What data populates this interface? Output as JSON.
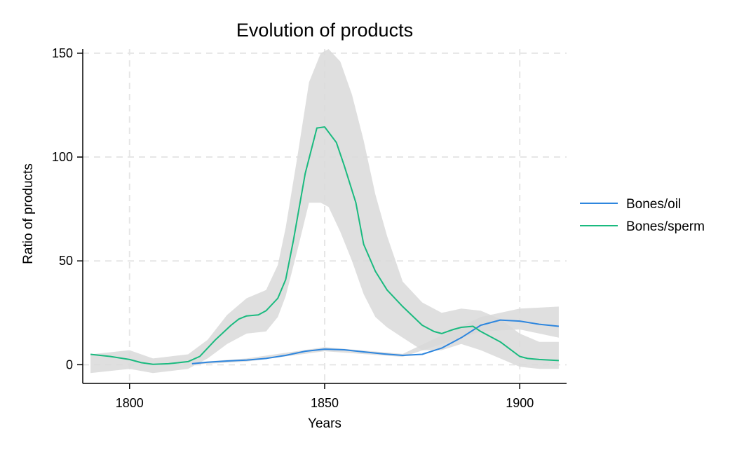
{
  "chart_data": {
    "type": "line",
    "title": "Evolution of products",
    "xlabel": "Years",
    "ylabel": "Ratio of products",
    "xlim": [
      1788,
      1912
    ],
    "ylim": [
      -9,
      152
    ],
    "xticks": [
      1800,
      1850,
      1900
    ],
    "yticks": [
      0,
      50,
      100,
      150
    ],
    "grid": true,
    "legend_position": "right",
    "series": [
      {
        "name": "Bones/oil",
        "color": "#2e86de",
        "x": [
          1816,
          1820,
          1825,
          1830,
          1835,
          1840,
          1845,
          1850,
          1855,
          1860,
          1865,
          1870,
          1875,
          1880,
          1885,
          1890,
          1895,
          1900,
          1905,
          1910
        ],
        "y": [
          0.5,
          1.2,
          1.8,
          2.2,
          3.0,
          4.5,
          6.5,
          7.5,
          7.2,
          6.2,
          5.2,
          4.5,
          5.0,
          8.0,
          13.0,
          19.0,
          21.5,
          21.0,
          19.5,
          18.5
        ]
      },
      {
        "name": "Bones/sperm",
        "color": "#1aba7f",
        "x": [
          1790,
          1795,
          1800,
          1803,
          1806,
          1810,
          1815,
          1818,
          1822,
          1826,
          1828,
          1830,
          1833,
          1835,
          1838,
          1840,
          1842,
          1845,
          1848,
          1850,
          1853,
          1855,
          1858,
          1860,
          1863,
          1866,
          1870,
          1875,
          1878,
          1880,
          1883,
          1885,
          1888,
          1890,
          1895,
          1900,
          1902,
          1905,
          1910
        ],
        "y": [
          5,
          4,
          2.5,
          1,
          0.2,
          0.5,
          1.5,
          4,
          12,
          19,
          22,
          23.5,
          24,
          26,
          32,
          41,
          60,
          92,
          114,
          114.5,
          107,
          96,
          78,
          58,
          45,
          36,
          28,
          19,
          16,
          15,
          17,
          18,
          18.5,
          16,
          11,
          4,
          3,
          2.5,
          2
        ]
      }
    ],
    "confidence_bands": [
      {
        "series": "Bones/oil",
        "x": [
          1816,
          1830,
          1850,
          1870,
          1890,
          1900,
          1910
        ],
        "lower": [
          0,
          1.5,
          6.5,
          3.8,
          16,
          17,
          13
        ],
        "upper": [
          1,
          3,
          8.5,
          5.2,
          23,
          27,
          28
        ]
      },
      {
        "series": "Bones/sperm",
        "x": [
          1790,
          1800,
          1806,
          1815,
          1820,
          1825,
          1830,
          1835,
          1838,
          1840,
          1843,
          1846,
          1849,
          1851,
          1854,
          1857,
          1860,
          1863,
          1866,
          1870,
          1875,
          1880,
          1885,
          1890,
          1895,
          1900,
          1905,
          1910
        ],
        "lower": [
          -4,
          -2,
          -4,
          -2,
          3,
          10,
          15,
          16,
          23,
          33,
          55,
          78,
          78,
          76,
          64,
          50,
          34,
          23,
          18,
          13,
          7,
          7,
          10,
          7,
          3,
          -1,
          -2,
          -2
        ],
        "upper": [
          5,
          7,
          3,
          5,
          12,
          24,
          32,
          36,
          48,
          66,
          100,
          136,
          150,
          152,
          146,
          130,
          108,
          82,
          62,
          40,
          30,
          25,
          27,
          26,
          22,
          15,
          11,
          11
        ]
      }
    ]
  }
}
